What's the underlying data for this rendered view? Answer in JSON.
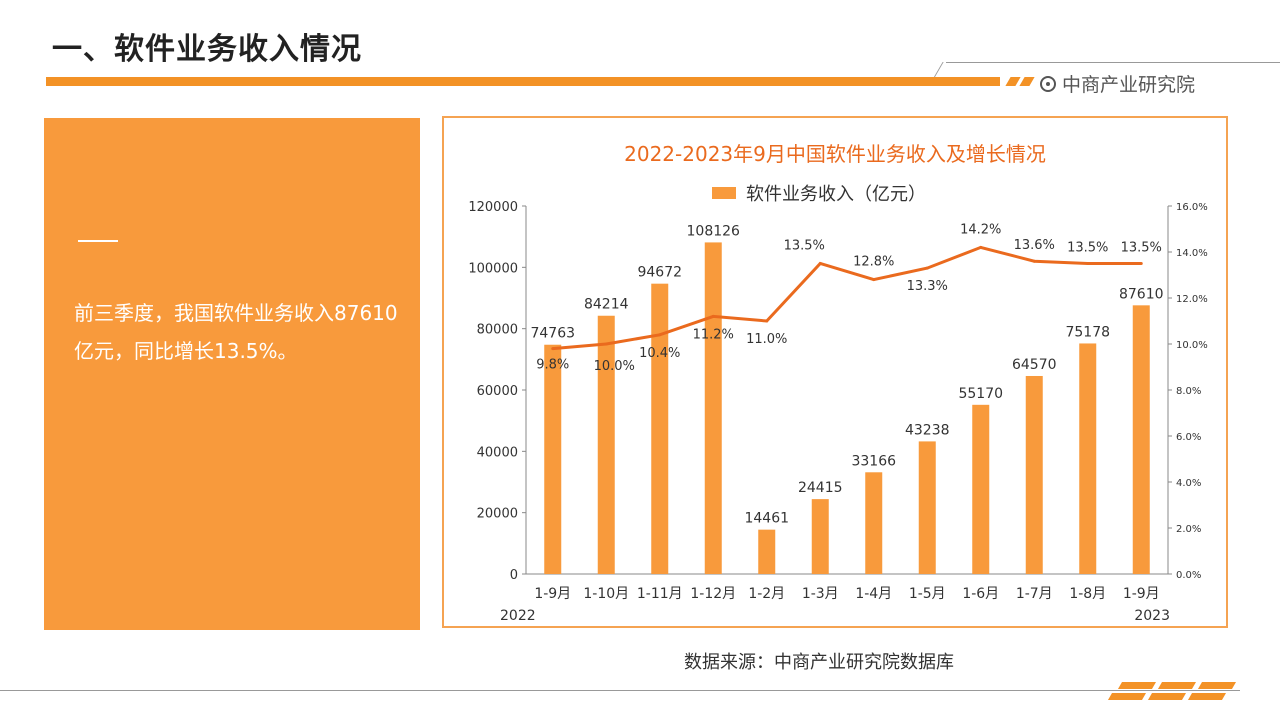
{
  "page": {
    "title": "一、软件业务收入情况",
    "brand": "中商产业研究院",
    "summary": "前三季度，我国软件业务收入87610亿元，同比增长13.5%。",
    "source": "数据来源：中商产业研究院数据库"
  },
  "colors": {
    "accent": "#f39226",
    "bar": "#f89a3c",
    "line": "#ea6a1e",
    "title": "#ea6a1e"
  },
  "chart_data": {
    "type": "bar",
    "title": "2022-2023年9月中国软件业务收入及增长情况",
    "categories": [
      "1-9月",
      "1-10月",
      "1-11月",
      "1-12月",
      "1-2月",
      "1-3月",
      "1-4月",
      "1-5月",
      "1-6月",
      "1-7月",
      "1-8月",
      "1-9月"
    ],
    "year_labels": {
      "start": "2022",
      "end": "2023"
    },
    "series": [
      {
        "name": "软件业务收入（亿元）",
        "type": "bar",
        "axis": "left",
        "values": [
          74763,
          84214,
          94672,
          108126,
          14461,
          24415,
          33166,
          43238,
          55170,
          64570,
          75178,
          87610
        ]
      },
      {
        "type": "line",
        "axis": "right",
        "values": [
          9.8,
          10.0,
          10.4,
          11.2,
          11.0,
          13.5,
          12.8,
          13.3,
          14.2,
          13.6,
          13.5,
          13.5
        ],
        "labels": [
          "9.8%",
          "10.0%",
          "10.4%",
          "11.2%",
          "11.0%",
          "13.5%",
          "12.8%",
          "13.3%",
          "14.2%",
          "13.6%",
          "13.5%",
          "13.5%"
        ]
      }
    ],
    "ylim": [
      0,
      120000
    ],
    "yticks": [
      "0",
      "20000",
      "40000",
      "60000",
      "80000",
      "100000",
      "120000"
    ],
    "y2lim": [
      0,
      16
    ],
    "y2ticks": [
      "0.0%",
      "2.0%",
      "4.0%",
      "6.0%",
      "8.0%",
      "10.0%",
      "12.0%",
      "14.0%",
      "16.0%"
    ],
    "grid": false,
    "legend": "top-center"
  }
}
